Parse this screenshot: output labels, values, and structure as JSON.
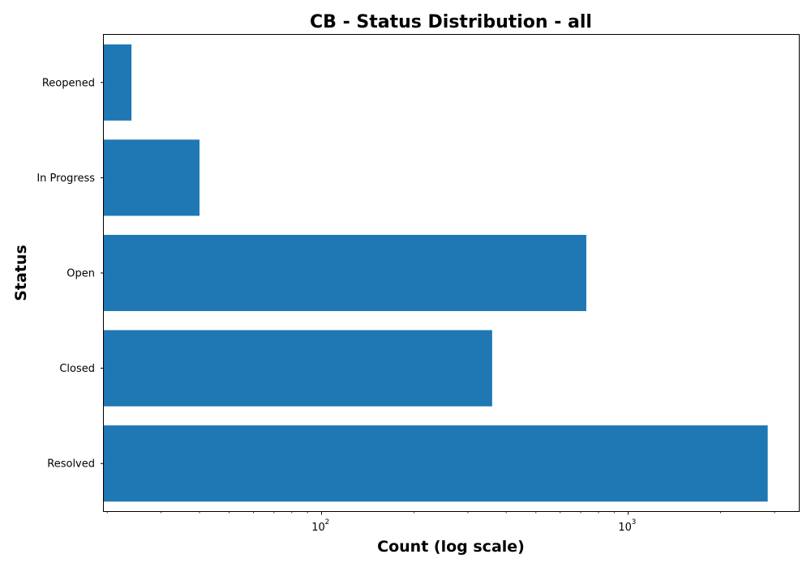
{
  "chart_data": {
    "type": "bar",
    "orientation": "horizontal",
    "title": "CB - Status Distribution - all",
    "xlabel": "Count (log scale)",
    "ylabel": "Status",
    "x_scale": "log",
    "xlim": [
      19.5,
      3600
    ],
    "x_major_ticks": [
      {
        "value": 100,
        "base": "10",
        "exp": "2"
      },
      {
        "value": 1000,
        "base": "10",
        "exp": "3"
      }
    ],
    "categories": [
      "Resolved",
      "Closed",
      "Open",
      "In Progress",
      "Reopened"
    ],
    "values": [
      2850,
      360,
      730,
      40,
      24
    ],
    "bar_color": "#1f77b4",
    "grid": false,
    "legend": "none"
  }
}
